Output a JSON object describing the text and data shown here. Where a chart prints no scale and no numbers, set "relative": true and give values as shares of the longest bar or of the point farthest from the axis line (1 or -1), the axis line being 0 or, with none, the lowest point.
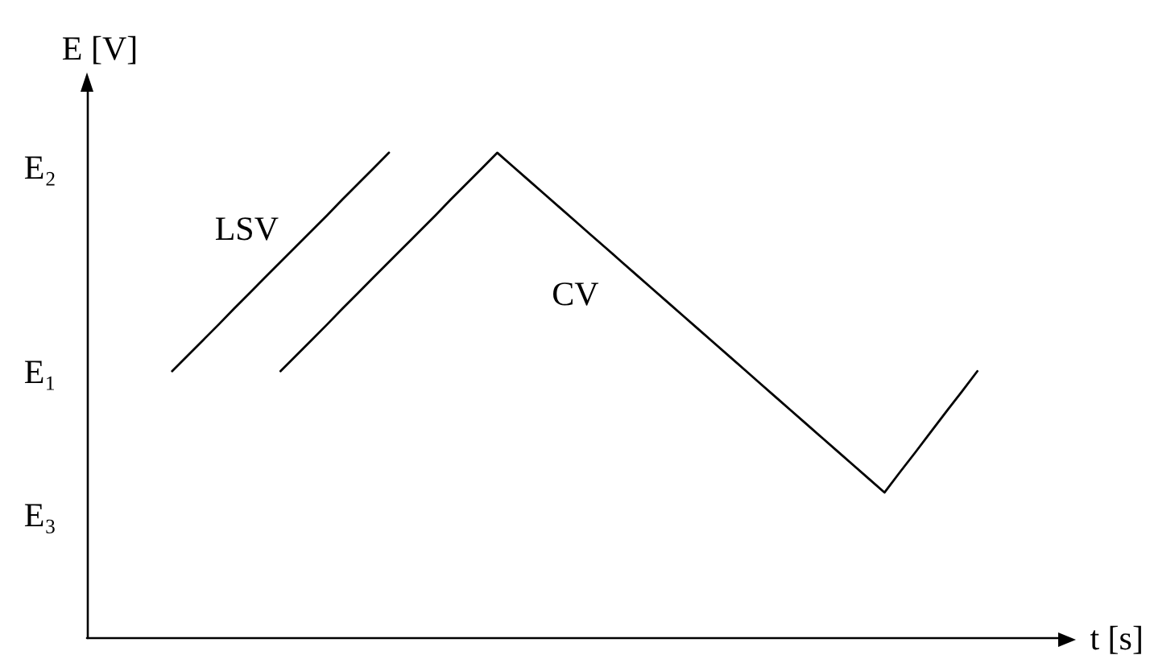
{
  "chart_data": {
    "type": "line",
    "relative": true,
    "xlabel": "t [s]",
    "ylabel": "E [V]",
    "marker": "none",
    "categories": [
      null,
      null,
      null,
      null,
      null,
      null,
      null,
      null,
      null,
      null,
      null,
      null,
      null,
      null,
      null,
      null,
      null,
      null,
      null,
      null,
      null,
      null,
      null,
      null,
      null,
      null,
      null,
      null,
      null,
      null,
      null,
      null,
      null,
      null,
      null,
      null,
      null,
      null,
      null,
      null,
      null,
      null,
      null,
      null,
      null,
      null,
      null,
      null,
      null,
      null,
      null,
      null,
      null,
      null,
      null,
      null,
      null,
      null,
      null,
      null,
      null,
      null,
      null
    ],
    "series": [
      {
        "name": "LSV",
        "color": "#000000",
        "values": [
          null,
          null,
          null,
          null,
          null,
          0.55,
          0.582,
          0.614,
          0.646,
          0.679,
          0.711,
          0.743,
          0.775,
          0.807,
          0.839,
          0.871,
          0.904,
          0.936,
          0.968,
          1,
          null,
          null,
          null,
          null,
          null,
          null,
          null,
          null,
          null,
          null,
          null,
          null,
          null,
          null,
          null,
          null,
          null,
          null,
          null,
          null,
          null,
          null,
          null,
          null,
          null,
          null,
          null,
          null,
          null,
          null,
          null,
          null,
          null,
          null,
          null,
          null,
          null,
          null,
          null,
          null,
          null,
          null,
          null
        ]
      },
      {
        "name": "CV",
        "color": "#000000",
        "values": [
          null,
          null,
          null,
          null,
          null,
          null,
          null,
          null,
          null,
          null,
          null,
          null,
          0.55,
          0.582,
          0.614,
          0.646,
          0.679,
          0.711,
          0.743,
          0.775,
          0.807,
          0.839,
          0.871,
          0.904,
          0.936,
          0.968,
          1,
          0.972,
          0.944,
          0.916,
          0.888,
          0.86,
          0.832,
          0.804,
          0.776,
          0.748,
          0.72,
          0.692,
          0.664,
          0.636,
          0.608,
          0.58,
          0.552,
          0.524,
          0.496,
          0.468,
          0.44,
          0.412,
          0.384,
          0.356,
          0.328,
          0.3,
          0.342,
          0.383,
          0.425,
          0.467,
          0.508,
          0.55,
          null,
          null,
          null,
          null,
          null
        ]
      }
    ],
    "annotations": [
      "E₂",
      "E₁",
      "E₃"
    ]
  }
}
